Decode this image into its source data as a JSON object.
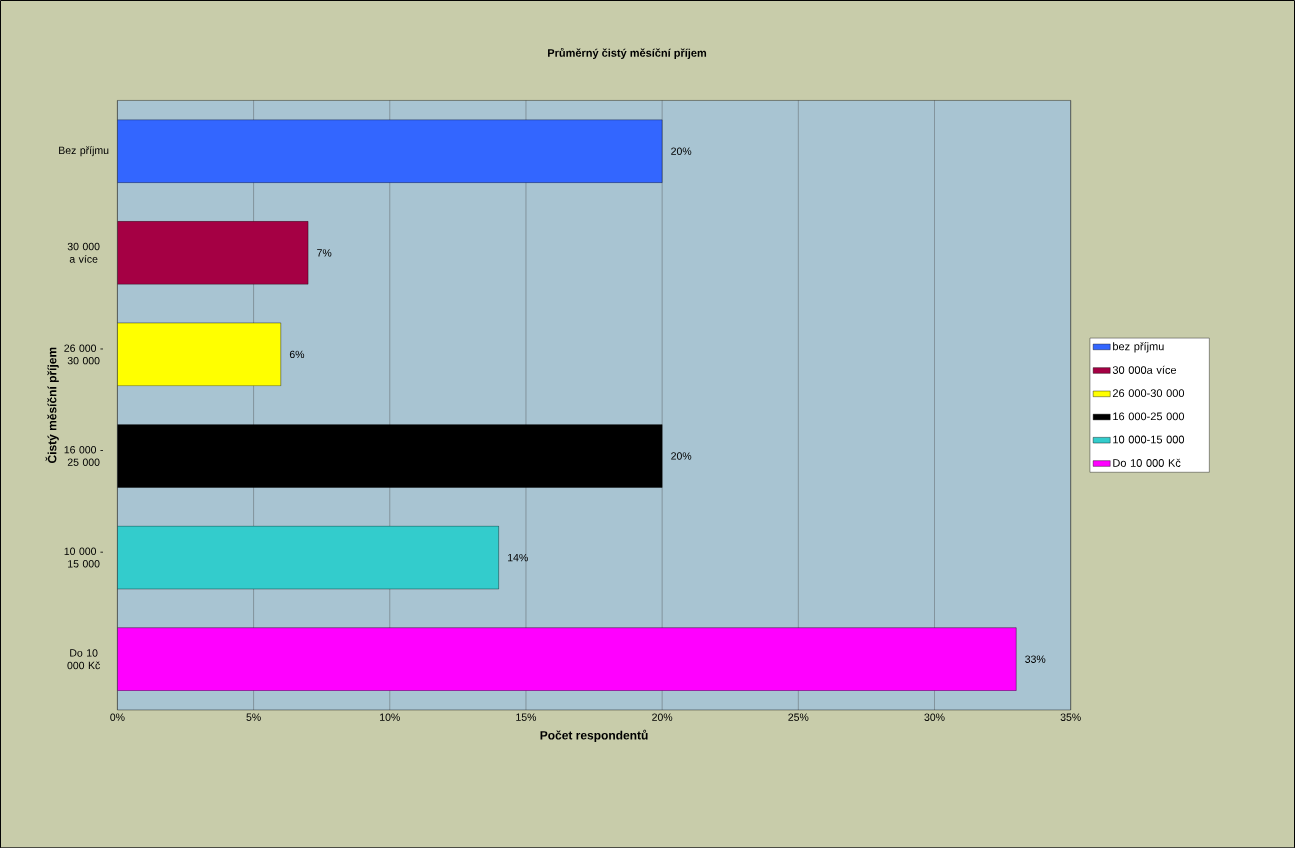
{
  "chart_data": {
    "type": "bar",
    "orientation": "horizontal",
    "title": "Průměrný čistý měsíční příjem",
    "xlabel": "Počet respondentů",
    "ylabel": "Čistý měsíční příjem",
    "categories": [
      "Bez příjmu",
      "30 000 a více",
      "26 000 - 30 000",
      "16 000 - 25 000",
      "10 000 - 15 000",
      "Do 10 000 Kč"
    ],
    "series": [
      {
        "name": "bez příjmu",
        "color": "#3366ff",
        "values": [
          20,
          null,
          null,
          null,
          null,
          null
        ],
        "value_labels": [
          "20%",
          null,
          null,
          null,
          null,
          null
        ]
      },
      {
        "name": "30 000a více",
        "color": "#a50044",
        "values": [
          null,
          7,
          null,
          null,
          null,
          null
        ],
        "value_labels": [
          null,
          "7%",
          null,
          null,
          null,
          null
        ]
      },
      {
        "name": "26 000-30 000",
        "color": "#ffff00",
        "values": [
          null,
          null,
          6,
          null,
          null,
          null
        ],
        "value_labels": [
          null,
          null,
          "6%",
          null,
          null,
          null
        ]
      },
      {
        "name": "16 000-25 000",
        "color": "#000000",
        "values": [
          null,
          null,
          null,
          20,
          null,
          null
        ],
        "value_labels": [
          null,
          null,
          null,
          "20%",
          null,
          null
        ]
      },
      {
        "name": "10 000-15 000",
        "color": "#33cccc",
        "values": [
          null,
          null,
          null,
          null,
          14,
          null
        ],
        "value_labels": [
          null,
          null,
          null,
          null,
          "14%",
          null
        ]
      },
      {
        "name": "Do 10 000 Kč",
        "color": "#ff00ff",
        "values": [
          null,
          null,
          null,
          null,
          null,
          33
        ],
        "value_labels": [
          null,
          null,
          null,
          null,
          null,
          "33%"
        ]
      }
    ],
    "xlim": [
      0,
      35
    ],
    "xticks": [
      {
        "value": 0,
        "label": "0%"
      },
      {
        "value": 5,
        "label": "5%"
      },
      {
        "value": 10,
        "label": "10%"
      },
      {
        "value": 15,
        "label": "15%"
      },
      {
        "value": 20,
        "label": "20%"
      },
      {
        "value": 25,
        "label": "25%"
      },
      {
        "value": 30,
        "label": "30%"
      },
      {
        "value": 35,
        "label": "35%"
      }
    ],
    "grid": "x",
    "legend": "right"
  }
}
